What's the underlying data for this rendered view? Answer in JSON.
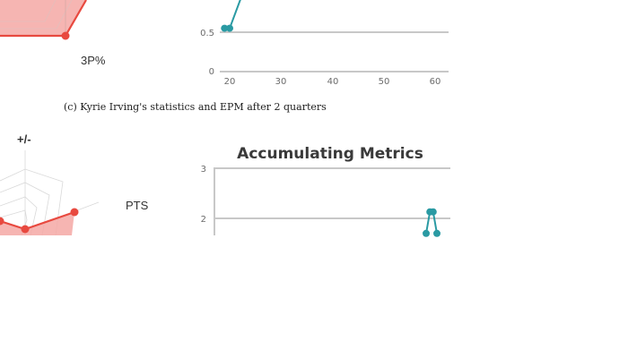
{
  "caption": "(c) Kyrie Irving's statistics and EPM after 2 quarters",
  "colors": {
    "radar_fill": "#f4a8a4",
    "radar_line": "#e8493f",
    "epm_line": "#2a9aa3",
    "grid": "#c8c8c8",
    "axis": "#bcbcbc"
  },
  "top_radar": {
    "labels": [
      "3P%"
    ]
  },
  "bottom_radar": {
    "labels": [
      "+/-",
      "PTS"
    ]
  },
  "chart_data": [
    {
      "type": "line",
      "title": "",
      "yticks": [
        "0",
        "0.5"
      ],
      "xticks": [
        "20",
        "30",
        "40",
        "50",
        "60"
      ],
      "x": [
        19,
        20,
        24
      ],
      "y": [
        0.55,
        0.55,
        1.25
      ]
    },
    {
      "type": "line",
      "title": "Accumulating Metrics",
      "yticks": [
        "3",
        "2"
      ],
      "x": [
        58,
        58.7,
        59.3,
        60
      ],
      "y": [
        1.7,
        2.13,
        2.13,
        1.7
      ]
    }
  ]
}
